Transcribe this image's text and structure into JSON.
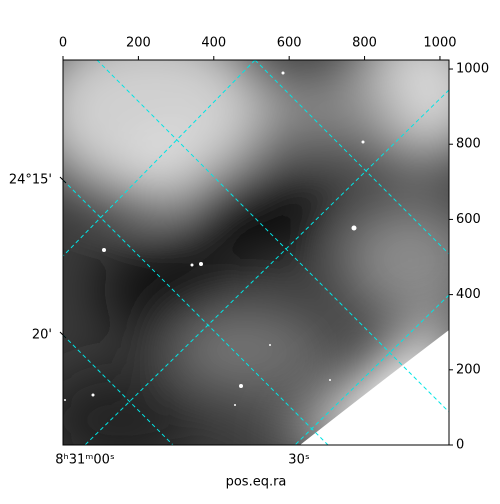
{
  "chart_data": {
    "type": "image",
    "xlabel": "pos.eq.ra",
    "xlim": [
      0,
      1024
    ],
    "xticks": [
      0,
      200,
      400,
      600,
      800,
      1000
    ],
    "ylim": [
      0,
      1024
    ],
    "yticks": [
      0,
      200,
      400,
      600,
      800,
      1000
    ],
    "dec_labels": [
      "24°15'",
      "20'"
    ],
    "ra_labels": [
      "8ʰ31ᵐ00ˢ",
      "30ˢ"
    ],
    "grid_color": "#00e5e5"
  }
}
